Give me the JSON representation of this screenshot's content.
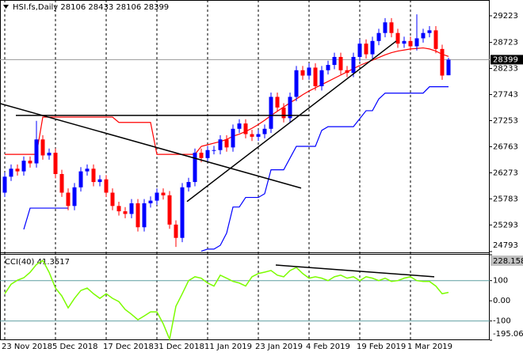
{
  "chart_data": [
    {
      "type": "candlestick",
      "title": "HSI.fs,Daily  28106 28433 28106 28399",
      "categories": [
        "23 Nov 2018",
        null,
        null,
        null,
        null,
        null,
        null,
        null,
        "5 Dec 2018",
        null,
        null,
        null,
        null,
        null,
        null,
        null,
        "17 Dec 2018",
        null,
        null,
        null,
        null,
        null,
        null,
        null,
        "31 Dec 2018",
        null,
        null,
        null,
        null,
        null,
        null,
        null,
        "11 Jan 2019",
        null,
        null,
        null,
        null,
        null,
        null,
        null,
        "23 Jan 2019",
        null,
        null,
        null,
        null,
        null,
        null,
        null,
        "4 Feb 2019",
        null,
        null,
        null,
        null,
        null,
        null,
        null,
        "19 Feb 2019",
        null,
        null,
        null,
        null,
        null,
        null,
        null,
        "1 Mar 2019",
        null,
        null,
        null,
        null,
        null,
        null
      ],
      "open": [
        25900,
        26200,
        26350,
        26300,
        26500,
        26450,
        26900,
        26600,
        26650,
        26250,
        25900,
        25650,
        26000,
        26300,
        26350,
        26100,
        26150,
        25900,
        25650,
        25550,
        25500,
        25700,
        25250,
        25700,
        25750,
        25900,
        25850,
        25300,
        25050,
        26000,
        26100,
        26650,
        26550,
        26700,
        26700,
        26900,
        26750,
        27100,
        27200,
        27000,
        26950,
        27000,
        27100,
        27700,
        27500,
        27300,
        27700,
        28200,
        28100,
        28250,
        27900,
        28200,
        28300,
        28450,
        28200,
        28150,
        28450,
        28700,
        28500,
        28750,
        28900,
        29100,
        28900,
        28700,
        28750,
        28650,
        28800,
        28900,
        28950,
        28600,
        28106
      ],
      "high": [
        26280,
        26430,
        26430,
        26580,
        26580,
        27250,
        26980,
        26730,
        26730,
        26330,
        25980,
        26080,
        26380,
        26430,
        26430,
        26230,
        26230,
        25980,
        25730,
        25630,
        25780,
        25780,
        25780,
        25830,
        25980,
        25980,
        25930,
        25380,
        26080,
        26180,
        26730,
        26730,
        26780,
        26780,
        26980,
        26980,
        27180,
        27280,
        27280,
        27080,
        27080,
        27180,
        27780,
        27780,
        27580,
        27780,
        28280,
        28280,
        28330,
        28330,
        28280,
        28380,
        28530,
        28530,
        28280,
        28530,
        28780,
        28780,
        28830,
        28980,
        29180,
        29180,
        28980,
        28830,
        28830,
        29250,
        28980,
        29030,
        29030,
        28680,
        28433
      ],
      "low": [
        25820,
        26120,
        26220,
        26220,
        26370,
        26370,
        26520,
        26520,
        26170,
        25820,
        25570,
        25570,
        25920,
        26220,
        26020,
        26020,
        25820,
        25570,
        25470,
        25420,
        25420,
        25170,
        25170,
        25620,
        25670,
        25770,
        25220,
        24880,
        24970,
        25920,
        26020,
        26470,
        26470,
        26620,
        26620,
        26670,
        26670,
        27020,
        26920,
        26870,
        26870,
        26920,
        27020,
        27420,
        27220,
        27220,
        27620,
        28020,
        28020,
        27820,
        27820,
        28120,
        28220,
        28120,
        28070,
        28070,
        28370,
        28420,
        28420,
        28670,
        28820,
        28820,
        28620,
        28620,
        28570,
        28570,
        28720,
        28820,
        28520,
        28020,
        28106
      ],
      "close": [
        26200,
        26350,
        26300,
        26500,
        26450,
        26900,
        26600,
        26650,
        26250,
        25900,
        25650,
        26000,
        26300,
        26350,
        26100,
        26150,
        25900,
        25650,
        25550,
        25500,
        25700,
        25250,
        25700,
        25750,
        25900,
        25850,
        25300,
        25050,
        26000,
        26100,
        26650,
        26550,
        26700,
        26700,
        26900,
        26750,
        27100,
        27200,
        27000,
        26950,
        27000,
        27100,
        27700,
        27500,
        27300,
        27700,
        28200,
        28100,
        28250,
        27900,
        28200,
        28300,
        28450,
        28200,
        28150,
        28450,
        28700,
        28500,
        28750,
        28900,
        29100,
        28900,
        28700,
        28750,
        28650,
        28800,
        28900,
        28950,
        28600,
        28100,
        28399
      ],
      "up_color": "#0000ff",
      "down_color": "#ff0000",
      "series": [
        {
          "color": "#ff0000",
          "values": [
            26620,
            26620,
            26620,
            26620,
            26620,
            26620,
            27320,
            27320,
            27320,
            27320,
            27320,
            27320,
            27320,
            27320,
            27320,
            27320,
            27320,
            27320,
            27220,
            27220,
            27220,
            27220,
            27220,
            27220,
            26620,
            26620,
            26620,
            26620,
            26620,
            26620,
            26620,
            26770,
            26800,
            26830,
            26860,
            26900,
            26960,
            27000,
            27050,
            27110,
            27180,
            27260,
            27350,
            27430,
            27510,
            27590,
            27660,
            27740,
            27810,
            27870,
            27930,
            27990,
            28050,
            28110,
            28170,
            28230,
            28290,
            28340,
            28390,
            28440,
            28490,
            28530,
            28560,
            28580,
            28600,
            28610,
            28620,
            28600,
            28560,
            28500,
            28460
          ]
        },
        {
          "color": "#0000ff",
          "values": [
            null,
            null,
            null,
            25210,
            25610,
            25610,
            25610,
            25610,
            25610,
            25610,
            25610,
            null,
            null,
            null,
            null,
            null,
            null,
            null,
            null,
            null,
            null,
            null,
            null,
            null,
            null,
            null,
            null,
            null,
            null,
            null,
            null,
            24800,
            24840,
            24840,
            24910,
            25140,
            25630,
            25630,
            25810,
            25810,
            25810,
            25880,
            26330,
            26330,
            26330,
            26550,
            26770,
            26770,
            26770,
            26770,
            27070,
            27140,
            27140,
            27140,
            27140,
            27140,
            27290,
            27440,
            27440,
            27660,
            27770,
            27770,
            27770,
            27770,
            27770,
            27770,
            27770,
            27890,
            27890,
            27890,
            27890
          ]
        }
      ],
      "trendlines": [
        {
          "x": [
            1.75,
            48
          ],
          "y": [
            27352,
            27352
          ]
        },
        {
          "x": [
            -0.75,
            46.75
          ],
          "y": [
            27575,
            25986
          ]
        },
        {
          "x": [
            28.75,
            61.75
          ],
          "y": [
            25733,
            28748
          ]
        }
      ],
      "ylim": [
        24793,
        29520
      ],
      "yticks": [
        29223,
        28723,
        28233,
        27743,
        27253,
        26763,
        26273,
        25783,
        25293,
        24793
      ],
      "grid": true,
      "last_price_line": true
    },
    {
      "type": "line",
      "title": "CCI(40) 41.3517",
      "series": [
        {
          "color": "#7cfc00",
          "values": [
            35,
            82,
            102,
            114,
            141,
            180,
            200,
            141,
            63,
            24,
            -35,
            12,
            51,
            63,
            35,
            12,
            35,
            12,
            -4,
            -43,
            -67,
            -94,
            -75,
            -55,
            -55,
            -114,
            -190,
            -27,
            35,
            100,
            119,
            112,
            88,
            73,
            127,
            112,
            96,
            88,
            73,
            119,
            135,
            142,
            150,
            127,
            119,
            150,
            165,
            135,
            112,
            119,
            112,
            100,
            119,
            127,
            112,
            119,
            100,
            119,
            112,
            100,
            112,
            96,
            100,
            112,
            119,
            100,
            96,
            96,
            73,
            35,
            41.3517
          ]
        }
      ],
      "trendlines": [
        {
          "x": [
            42.75,
            67.75
          ],
          "y": [
            177,
            119
          ]
        }
      ],
      "ylim": [
        -195.061,
        228.1588
      ],
      "yticks": [
        228.1588,
        100,
        {
          "value": 0,
          "label": "0.00"
        },
        -100,
        -195.061
      ],
      "levels": [
        100,
        -100
      ]
    }
  ]
}
